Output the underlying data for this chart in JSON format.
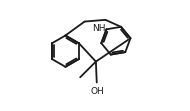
{
  "bg_color": "#ffffff",
  "line_color": "#1a1a1a",
  "line_width": 1.3,
  "font_size": 6.5,
  "label_NH": "NH",
  "label_OH": "OH",
  "xlim": [
    -0.5,
    5.5
  ],
  "ylim": [
    -1.8,
    4.5
  ]
}
